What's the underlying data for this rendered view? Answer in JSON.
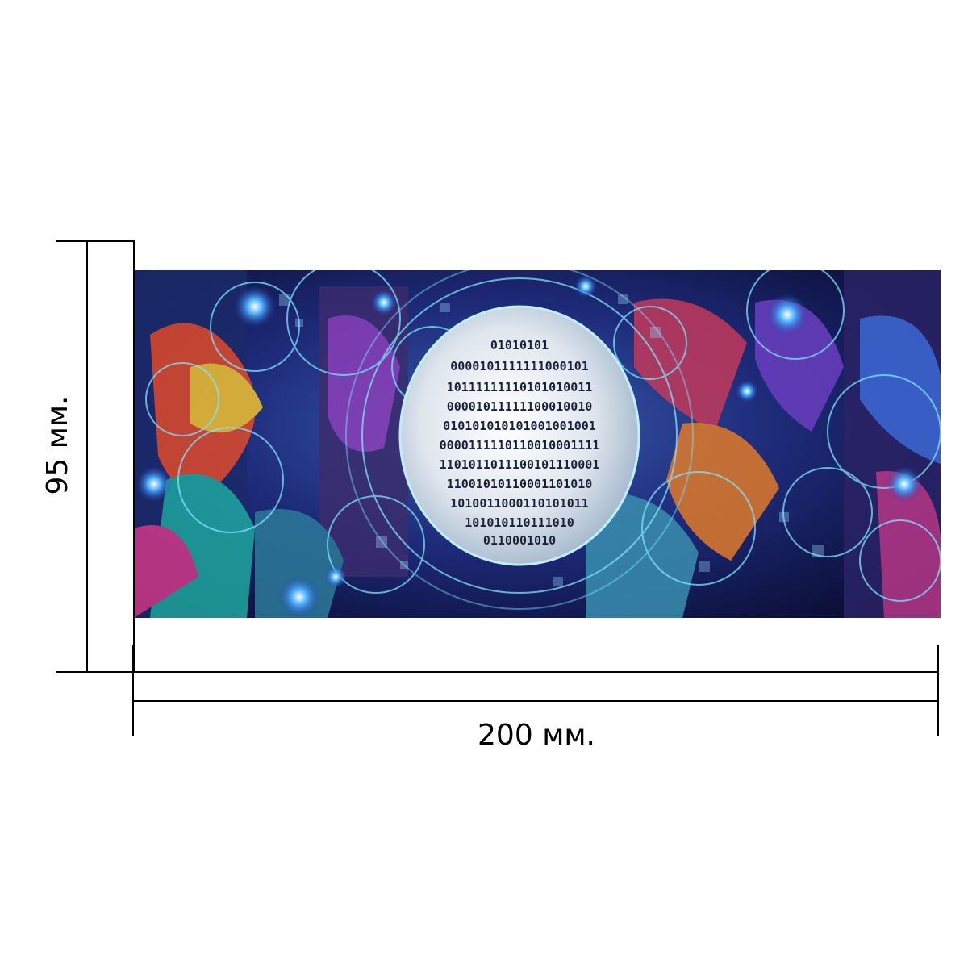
{
  "dimensions": {
    "width_label": "200 мм.",
    "height_label": "95 мм."
  },
  "artwork": {
    "subject": "graffiti-alley-binary-sphere",
    "binary_rows": [
      "01010101",
      "0000101111111000101",
      "10111111110101010011",
      "00001011111100010010",
      "010101010101001001001",
      "0000111110110010001111",
      "1101011011100101110001",
      "11001010110001101010",
      "1010011000110101011",
      "101010110111010",
      "0110001010"
    ],
    "colors": {
      "background": "#0d1140",
      "glow": "#7fe3ff",
      "sphere": "#e8eef5"
    }
  }
}
